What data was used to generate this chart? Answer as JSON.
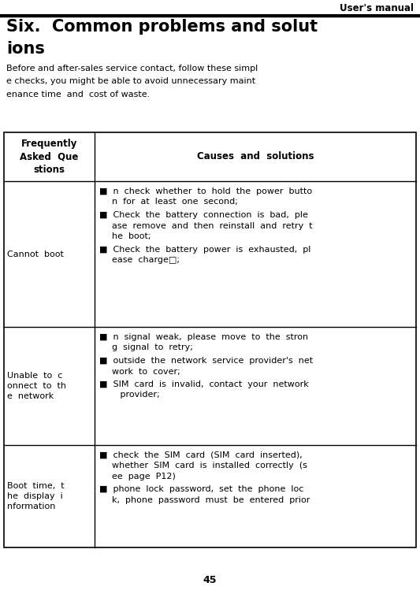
{
  "header_text": "User's manual",
  "title_line1": "Six.  Common problems and solut",
  "title_line2": "ions",
  "intro_lines": [
    "Before and after-sales service contact, follow these simpl",
    "e checks, you might be able to avoid unnecessary maint",
    "enance time  and  cost of waste."
  ],
  "col1_header_lines": [
    "Frequently",
    "Asked  Que",
    "stions"
  ],
  "col2_header": "Causes  and  solutions",
  "rows": [
    {
      "question_lines": [
        "Cannot  boot"
      ],
      "answer_items": [
        [
          "n  check  whether  to  hold  the  power  butto",
          "n  for  at  least  one  second;"
        ],
        [
          "Check  the  battery  connection  is  bad,  ple",
          "ase  remove  and  then  reinstall  and  retry  t",
          "he  boot;"
        ],
        [
          "Check  the  battery  power  is  exhausted,  pl",
          "ease  charge□;"
        ]
      ]
    },
    {
      "question_lines": [
        "Unable  to  c",
        "onnect  to  th",
        "e  network"
      ],
      "answer_items": [
        [
          "n  signal  weak,  please  move  to  the  stron",
          "g  signal  to  retry;"
        ],
        [
          "outside  the  network  service  provider's  net",
          "work  to  cover;"
        ],
        [
          "SIM  card  is  invalid,  contact  your  network",
          "   provider;"
        ]
      ]
    },
    {
      "question_lines": [
        "Boot  time,  t",
        "he  display  i",
        "nformation"
      ],
      "answer_items": [
        [
          "check  the  SIM  card  (SIM  card  inserted),",
          "whether  SIM  card  is  installed  correctly  (s",
          "ee  page  P12)"
        ],
        [
          "phone  lock  password,  set  the  phone  loc",
          "k,  phone  password  must  be  entered  prior"
        ]
      ]
    }
  ],
  "page_number": "45",
  "bg_color": "#ffffff",
  "text_color": "#000000",
  "font_size": 8.0,
  "title_font_size": 15.0,
  "header_font_size": 8.5
}
